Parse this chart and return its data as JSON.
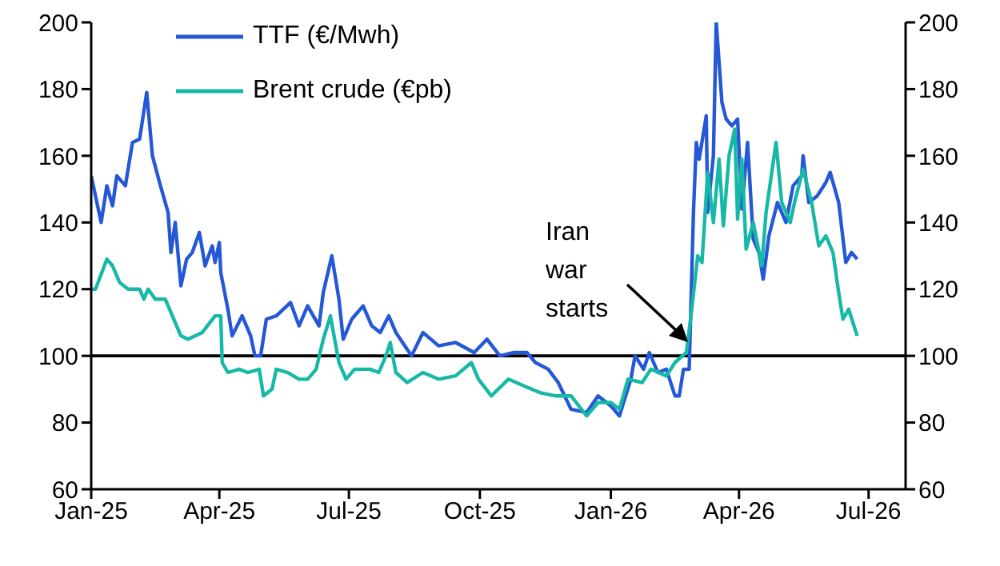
{
  "chart_data": {
    "type": "line",
    "xlim": [
      "2025-01-01",
      "2026-07-27"
    ],
    "xticks": [
      {
        "value": "2025-01-01",
        "label": "Jan-25"
      },
      {
        "value": "2025-04-01",
        "label": "Apr-25"
      },
      {
        "value": "2025-07-01",
        "label": "Jul-25"
      },
      {
        "value": "2025-10-01",
        "label": "Oct-25"
      },
      {
        "value": "2026-01-01",
        "label": "Jan-26"
      },
      {
        "value": "2026-04-01",
        "label": "Apr-26"
      },
      {
        "value": "2026-07-01",
        "label": "Jul-26"
      }
    ],
    "ylim": [
      60,
      200
    ],
    "yticks": [
      60,
      80,
      100,
      120,
      140,
      160,
      180,
      200
    ],
    "y2lim": [
      60,
      200
    ],
    "y2ticks": [
      60,
      80,
      100,
      120,
      140,
      160,
      180,
      200
    ],
    "grid": false,
    "legend": "top left",
    "marker": "none",
    "line_style": "solid",
    "ref_lines": [
      {
        "axis": "y",
        "value": 100,
        "color": "#000000"
      }
    ],
    "annotations": [
      "Iran war starts"
    ],
    "series": [
      {
        "name": "TTF (€/Mwh)",
        "color": "#2458d6",
        "x": [
          "2025-01-01",
          "2025-01-08",
          "2025-01-12",
          "2025-01-16",
          "2025-01-19",
          "2025-01-25",
          "2025-01-30",
          "2025-02-04",
          "2025-02-09",
          "2025-02-13",
          "2025-02-18",
          "2025-02-24",
          "2025-02-26",
          "2025-03-01",
          "2025-03-05",
          "2025-03-09",
          "2025-03-13",
          "2025-03-18",
          "2025-03-22",
          "2025-03-27",
          "2025-03-29",
          "2025-04-01",
          "2025-04-02",
          "2025-04-07",
          "2025-04-10",
          "2025-04-17",
          "2025-04-23",
          "2025-04-26",
          "2025-04-30",
          "2025-05-04",
          "2025-05-11",
          "2025-05-21",
          "2025-05-27",
          "2025-06-02",
          "2025-06-10",
          "2025-06-13",
          "2025-06-19",
          "2025-06-24",
          "2025-06-27",
          "2025-07-03",
          "2025-07-11",
          "2025-07-17",
          "2025-07-23",
          "2025-07-29",
          "2025-08-03",
          "2025-08-14",
          "2025-08-22",
          "2025-09-02",
          "2025-09-14",
          "2025-09-27",
          "2025-10-06",
          "2025-10-15",
          "2025-10-25",
          "2025-11-03",
          "2025-11-09",
          "2025-11-18",
          "2025-11-25",
          "2025-12-04",
          "2025-12-15",
          "2025-12-23",
          "2026-01-01",
          "2026-01-07",
          "2026-01-15",
          "2026-01-18",
          "2026-01-24",
          "2026-01-28",
          "2026-02-03",
          "2026-02-09",
          "2026-02-15",
          "2026-02-18",
          "2026-02-21",
          "2026-02-25",
          "2026-02-28",
          "2026-03-02",
          "2026-03-04",
          "2026-03-09",
          "2026-03-10",
          "2026-03-14",
          "2026-03-16",
          "2026-03-20",
          "2026-03-23",
          "2026-03-27",
          "2026-03-31",
          "2026-04-03",
          "2026-04-07",
          "2026-04-11",
          "2026-04-15",
          "2026-04-18",
          "2026-04-22",
          "2026-04-28",
          "2026-05-04",
          "2026-05-09",
          "2026-05-15",
          "2026-05-16",
          "2026-05-20",
          "2026-05-26",
          "2026-06-01",
          "2026-06-04",
          "2026-06-10",
          "2026-06-15",
          "2026-06-19",
          "2026-06-23"
        ],
        "values": [
          154,
          140,
          151,
          145,
          154,
          151,
          164,
          165,
          179,
          160,
          152,
          143,
          131,
          140,
          121,
          129,
          131,
          137,
          127,
          133,
          128,
          134,
          125,
          114,
          106,
          112,
          106,
          100,
          100,
          111,
          112,
          116,
          109,
          115,
          109,
          119,
          130,
          117,
          105,
          111,
          115,
          109,
          107,
          112,
          107,
          100,
          107,
          103,
          104,
          101,
          105,
          100,
          101,
          101,
          98,
          96,
          92,
          84,
          83,
          88,
          85,
          82,
          93,
          100,
          96,
          101,
          95,
          96,
          88,
          88,
          96,
          96,
          143,
          164,
          159,
          172,
          143,
          160,
          200,
          176,
          171,
          169,
          171,
          144,
          164,
          135,
          131,
          123,
          136,
          146,
          140,
          151,
          154,
          160,
          146,
          148,
          152,
          155,
          146,
          128,
          131,
          129
        ]
      },
      {
        "name": "Brent crude (€pb)",
        "color": "#17b8a6",
        "x": [
          "2025-01-01",
          "2025-01-04",
          "2025-01-12",
          "2025-01-16",
          "2025-01-21",
          "2025-01-27",
          "2025-02-04",
          "2025-02-07",
          "2025-02-10",
          "2025-02-15",
          "2025-02-22",
          "2025-02-27",
          "2025-03-05",
          "2025-03-10",
          "2025-03-20",
          "2025-03-29",
          "2025-04-02",
          "2025-04-03",
          "2025-04-07",
          "2025-04-15",
          "2025-04-21",
          "2025-04-29",
          "2025-05-02",
          "2025-05-08",
          "2025-05-11",
          "2025-05-19",
          "2025-05-27",
          "2025-06-02",
          "2025-06-08",
          "2025-06-13",
          "2025-06-18",
          "2025-06-24",
          "2025-06-29",
          "2025-07-05",
          "2025-07-16",
          "2025-07-22",
          "2025-07-27",
          "2025-07-30",
          "2025-08-03",
          "2025-08-11",
          "2025-08-22",
          "2025-09-02",
          "2025-09-14",
          "2025-09-25",
          "2025-09-30",
          "2025-10-09",
          "2025-10-21",
          "2025-11-01",
          "2025-11-12",
          "2025-11-23",
          "2025-12-04",
          "2025-12-15",
          "2025-12-23",
          "2026-01-01",
          "2026-01-07",
          "2026-01-13",
          "2026-01-23",
          "2026-01-29",
          "2026-02-09",
          "2026-02-15",
          "2026-02-23",
          "2026-02-26",
          "2026-03-03",
          "2026-03-06",
          "2026-03-10",
          "2026-03-14",
          "2026-03-18",
          "2026-03-21",
          "2026-03-25",
          "2026-03-29",
          "2026-03-31",
          "2026-04-03",
          "2026-04-06",
          "2026-04-11",
          "2026-04-17",
          "2026-04-20",
          "2026-04-27",
          "2026-05-01",
          "2026-05-07",
          "2026-05-10",
          "2026-05-16",
          "2026-05-22",
          "2026-05-27",
          "2026-06-01",
          "2026-06-06",
          "2026-06-10",
          "2026-06-13",
          "2026-06-17",
          "2026-06-23"
        ],
        "values": [
          120,
          120,
          129,
          127,
          122,
          120,
          120,
          117,
          120,
          117,
          117,
          112,
          106,
          105,
          107,
          112,
          112,
          98,
          95,
          96,
          95,
          96,
          88,
          90,
          96,
          95,
          93,
          93,
          96,
          105,
          112,
          98,
          93,
          96,
          96,
          95,
          100,
          104,
          95,
          92,
          95,
          93,
          94,
          98,
          93,
          88,
          93,
          91,
          89,
          88,
          88,
          82,
          86,
          86,
          84,
          93,
          92,
          96,
          94,
          98,
          101,
          111,
          130,
          128,
          155,
          140,
          159,
          139,
          160,
          168,
          141,
          159,
          132,
          140,
          127,
          143,
          164,
          146,
          140,
          146,
          156,
          146,
          133,
          136,
          131,
          119,
          111,
          114,
          106
        ]
      }
    ]
  }
}
